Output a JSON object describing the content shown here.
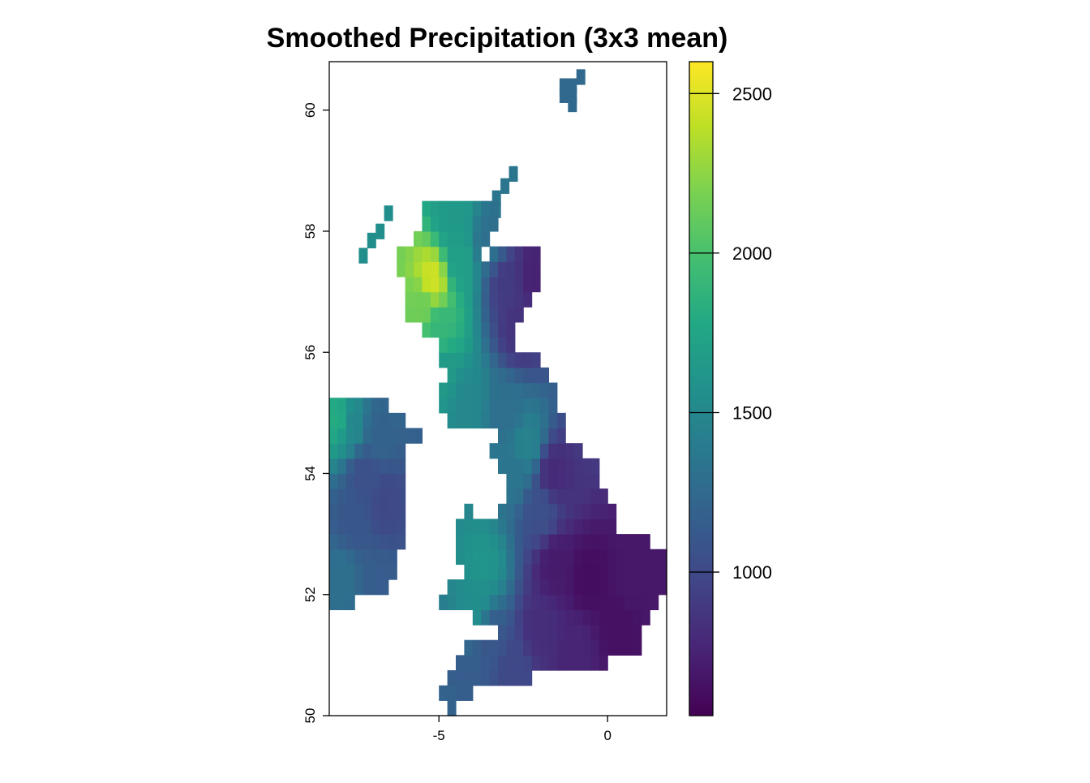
{
  "chart_data": {
    "type": "heatmap",
    "title": "Smoothed Precipitation (3x3 mean)",
    "xlabel": "",
    "ylabel": "",
    "x_ticks": [
      -5,
      0
    ],
    "y_ticks": [
      50,
      52,
      54,
      56,
      58,
      60
    ],
    "xlim": [
      -8.25,
      1.75
    ],
    "ylim": [
      50.0,
      60.8
    ],
    "cell_size_deg": 0.25,
    "colorbar": {
      "min": 550,
      "max": 2600,
      "ticks": [
        1000,
        1500,
        2000,
        2500
      ],
      "palette": "viridis"
    },
    "grid": false,
    "region_fields": [
      {
        "region": "Shetland",
        "value": 1250,
        "cells": [
          [
            -1.3,
            60.4
          ],
          [
            -1.05,
            60.4
          ],
          [
            -1.3,
            60.25
          ],
          [
            -1.05,
            60.25
          ],
          [
            -0.8,
            60.55
          ],
          [
            -1.05,
            60.1
          ]
        ]
      },
      {
        "region": "Orkney",
        "value": 1350,
        "cells": [
          [
            -3.3,
            58.35
          ],
          [
            -3.3,
            58.55
          ],
          [
            -3.05,
            58.75
          ],
          [
            -2.8,
            58.95
          ]
        ]
      },
      {
        "region": "Hebrides",
        "value": 1550,
        "cells": [
          [
            -6.5,
            58.3
          ],
          [
            -6.75,
            58.0
          ],
          [
            -7.0,
            57.85
          ],
          [
            -7.25,
            57.6
          ]
        ]
      },
      {
        "region": "Ireland",
        "value": 1100,
        "points": [
          [
            -7.6,
            54.8,
            1500
          ],
          [
            -8.0,
            54.9,
            1800
          ],
          [
            -6.8,
            54.7,
            1200
          ],
          [
            -6.6,
            53.5,
            1000
          ],
          [
            -7.5,
            53.2,
            1100
          ],
          [
            -7.9,
            52.3,
            1300
          ],
          [
            -6.8,
            52.2,
            1150
          ],
          [
            -7.2,
            54.0,
            1050
          ]
        ]
      },
      {
        "region": "Great Britain",
        "value": 800,
        "points": [
          [
            -5.2,
            57.2,
            2450
          ],
          [
            -5.5,
            56.8,
            2150
          ],
          [
            -5.0,
            56.4,
            1900
          ],
          [
            -4.4,
            57.5,
            1700
          ],
          [
            -4.6,
            58.2,
            1650
          ],
          [
            -3.5,
            57.8,
            1300
          ],
          [
            -3.0,
            57.2,
            900
          ],
          [
            -2.2,
            57.3,
            750
          ],
          [
            -2.6,
            56.4,
            850
          ],
          [
            -4.2,
            55.2,
            1500
          ],
          [
            -4.9,
            55.7,
            1650
          ],
          [
            -3.0,
            55.0,
            1300
          ],
          [
            -2.4,
            54.5,
            1450
          ],
          [
            -2.8,
            54.0,
            1350
          ],
          [
            -2.0,
            53.4,
            1050
          ],
          [
            -1.6,
            54.0,
            800
          ],
          [
            -3.7,
            52.5,
            1600
          ],
          [
            -3.9,
            51.8,
            1550
          ],
          [
            -3.5,
            51.3,
            1100
          ],
          [
            -4.4,
            50.6,
            1150
          ],
          [
            -4.8,
            50.35,
            1200
          ],
          [
            -2.8,
            50.8,
            1000
          ],
          [
            -1.5,
            52.5,
            700
          ],
          [
            -0.6,
            52.3,
            620
          ],
          [
            0.8,
            52.2,
            680
          ],
          [
            0.3,
            51.5,
            640
          ],
          [
            -1.0,
            51.1,
            760
          ],
          [
            -2.0,
            51.4,
            820
          ]
        ]
      }
    ]
  }
}
